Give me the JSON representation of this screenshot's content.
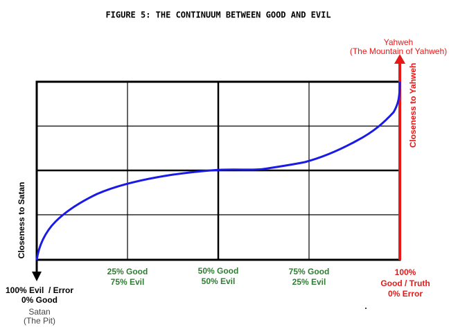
{
  "title": "FIGURE 5: THE CONTINUUM BETWEEN GOOD AND EVIL",
  "top": {
    "name": "Yahweh",
    "subtitle": "(The Mountain of Yahweh)"
  },
  "axis_labels": {
    "right": "Closeness to Yahweh",
    "left": "Closeness to Satan"
  },
  "markers": [
    {
      "line1": "25% Good",
      "line2": "75% Evil"
    },
    {
      "line1": "50% Good",
      "line2": "50% Evil"
    },
    {
      "line1": "75% Good",
      "line2": "25% Evil"
    }
  ],
  "bottom_left": {
    "line1": "100% Evil  / Error",
    "line2": "0% Good",
    "name": "Satan",
    "subtitle": "(The Pit)"
  },
  "bottom_right": {
    "line1": "100%",
    "line2": "Good / Truth",
    "line3": "0% Error"
  }
}
